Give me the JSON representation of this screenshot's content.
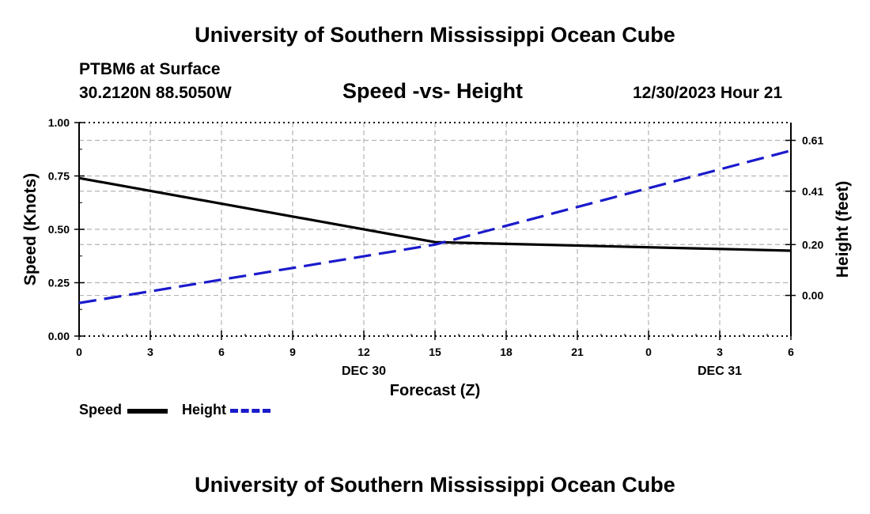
{
  "header": {
    "title": "University of Southern Mississippi Ocean Cube",
    "station": "PTBM6 at Surface",
    "coordinates": "30.2120N  88.5050W",
    "subtitle": "Speed -vs- Height",
    "datetime": "12/30/2023 Hour 21"
  },
  "footer": {
    "title": "University of Southern Mississippi Ocean Cube"
  },
  "legend": {
    "speed_label": "Speed",
    "height_label": "Height"
  },
  "colors": {
    "speed": "#000000",
    "height": "#1a1acc",
    "grid": "#b4b4b4"
  },
  "chart_data": {
    "type": "line",
    "title": "Speed -vs- Height",
    "xlabel": "Forecast (Z)",
    "ylabel": "Speed (Knots)",
    "y2label": "Height (feet)",
    "x_ticks": [
      "0",
      "3",
      "6",
      "9",
      "12",
      "15",
      "18",
      "21",
      "0",
      "3",
      "6"
    ],
    "x_hours": [
      0,
      3,
      6,
      9,
      12,
      15,
      18,
      21,
      24,
      27,
      30
    ],
    "x_date_labels": [
      {
        "label": "DEC 30",
        "hour": 12
      },
      {
        "label": "DEC 31",
        "hour": 27
      }
    ],
    "xlim": [
      0,
      30
    ],
    "ylim": [
      0,
      1
    ],
    "y_ticks": [
      "0.00",
      "0.25",
      "0.50",
      "0.75",
      "1.00"
    ],
    "y_tick_values": [
      0,
      0.25,
      0.5,
      0.75,
      1.0
    ],
    "y2lim": [
      -0.16,
      0.68
    ],
    "y2_ticks": [
      "0.00",
      "0.20",
      "0.41",
      "0.61"
    ],
    "y2_tick_values": [
      0.0,
      0.2,
      0.41,
      0.61
    ],
    "grid": true,
    "legend_position": "bottom-left",
    "series": [
      {
        "name": "Speed",
        "axis": "left",
        "style": "solid",
        "x": [
          0,
          15,
          30
        ],
        "values": [
          0.74,
          0.44,
          0.4
        ]
      },
      {
        "name": "Height",
        "axis": "right",
        "style": "dashed",
        "x": [
          0,
          15,
          30
        ],
        "values": [
          -0.03,
          0.2,
          0.57
        ]
      }
    ]
  }
}
